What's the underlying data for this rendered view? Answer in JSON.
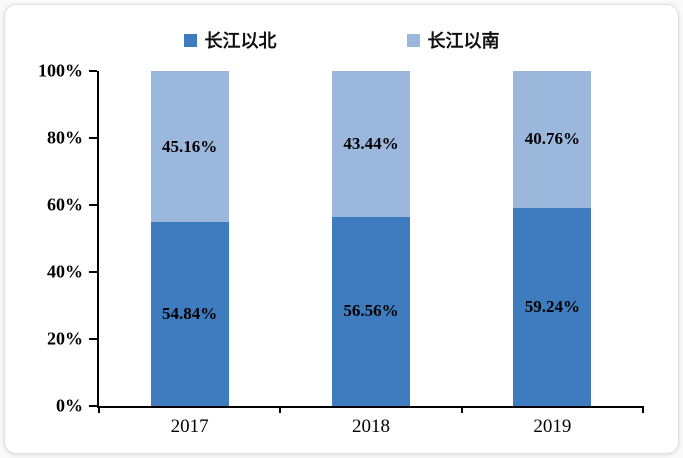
{
  "chart_data": {
    "type": "bar",
    "stacked": true,
    "percent_stacked": true,
    "title": "",
    "xlabel": "",
    "ylabel": "",
    "categories": [
      "2017",
      "2018",
      "2019"
    ],
    "series": [
      {
        "name": "长江以北",
        "color": "#3e7cbf",
        "values": [
          54.84,
          56.56,
          59.24
        ]
      },
      {
        "name": "长江以南",
        "color": "#9bb7dc",
        "values": [
          45.16,
          43.44,
          40.76
        ]
      }
    ],
    "value_labels": [
      [
        "54.84%",
        "56.56%",
        "59.24%"
      ],
      [
        "45.16%",
        "43.44%",
        "40.76%"
      ]
    ],
    "ylim": [
      0,
      100
    ],
    "ytick_labels": [
      "0%",
      "20%",
      "40%",
      "60%",
      "80%",
      "100%"
    ],
    "legend_position": "top",
    "grid": false
  }
}
